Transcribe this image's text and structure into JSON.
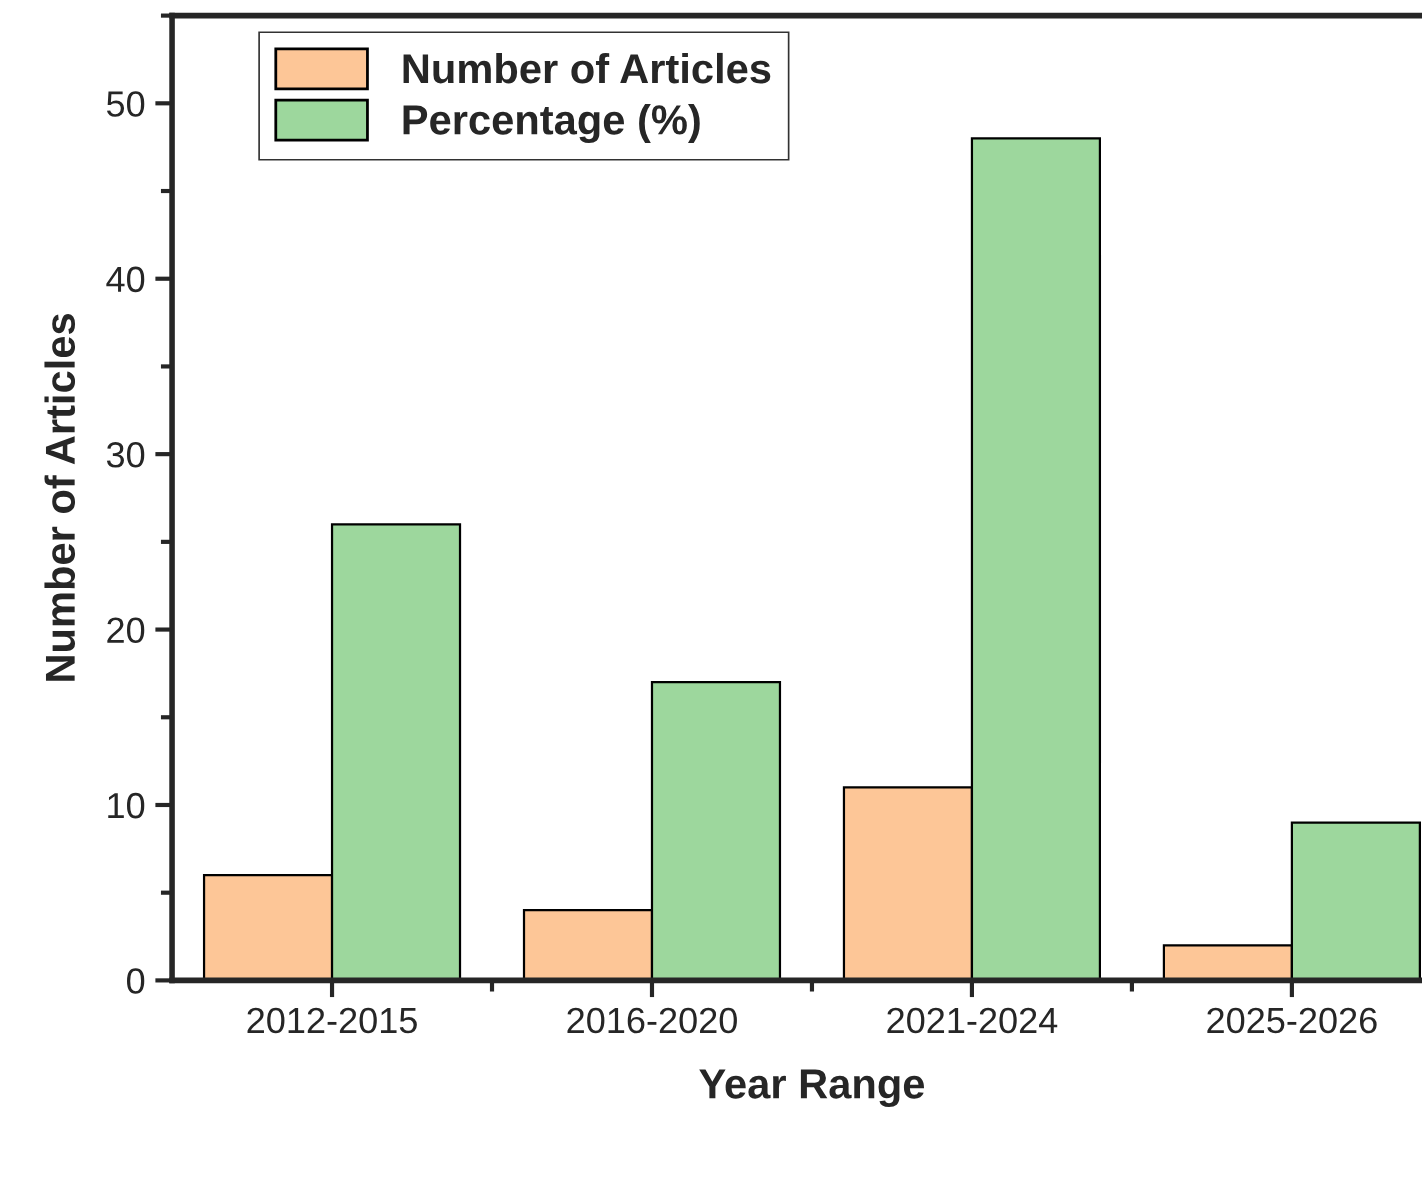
{
  "chart_data": {
    "type": "bar",
    "categories": [
      "2012-2015",
      "2016-2020",
      "2021-2024",
      "2025-2026"
    ],
    "series": [
      {
        "name": "Number of Articles",
        "color": "#fdc697",
        "values": [
          6,
          4,
          11,
          2
        ]
      },
      {
        "name": "Percentage (%)",
        "color": "#9dd79d",
        "values": [
          26,
          17,
          48,
          9
        ]
      }
    ],
    "xlabel": "Year Range",
    "ylabel": "Number of Articles",
    "ylim": [
      0,
      55
    ],
    "yticks": [
      0,
      10,
      20,
      30,
      40,
      50
    ],
    "grid": false,
    "legend": "top left"
  }
}
